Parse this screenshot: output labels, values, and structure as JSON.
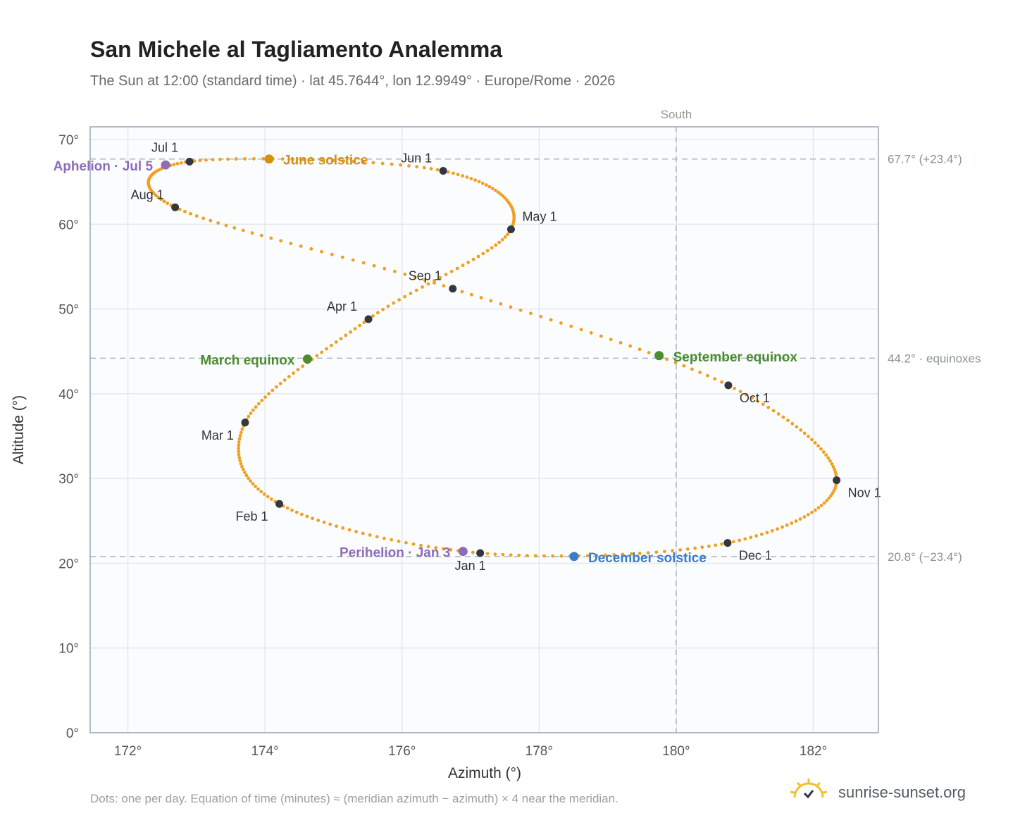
{
  "header": {
    "title": "San Michele al Tagliamento Analemma",
    "subtitle": "The Sun at 12:00 (standard time) · lat 45.7644°, lon 12.9949° · Europe/Rome · 2026"
  },
  "footer": {
    "note": "Dots: one per day. Equation of time (minutes) ≈ (meridian azimuth − azimuth) × 4 near the meridian.",
    "brand": "sunrise-sunset.org"
  },
  "colors": {
    "path": "#f0a020",
    "month_dot": "#333840",
    "solstice_june": "#d4900f",
    "solstice_december": "#3a7cc8",
    "equinox": "#4c8c30",
    "apsis": "#8e6cb8",
    "grid": "#e4e8ee",
    "frame": "#9aa6b4",
    "plot_bg": "#fafcfe"
  },
  "chart_data": {
    "type": "scatter",
    "title": "San Michele al Tagliamento Analemma",
    "xlabel": "Azimuth (°)",
    "ylabel": "Altitude (°)",
    "xlim": [
      171.45,
      182.95
    ],
    "ylim": [
      0,
      71.5
    ],
    "xticks": [
      {
        "value": 172,
        "label": "172°"
      },
      {
        "value": 174,
        "label": "174°"
      },
      {
        "value": 176,
        "label": "176°"
      },
      {
        "value": 178,
        "label": "178°"
      },
      {
        "value": 180,
        "label": "180°"
      },
      {
        "value": 182,
        "label": "182°"
      }
    ],
    "yticks": [
      {
        "value": 0,
        "label": "0°"
      },
      {
        "value": 10,
        "label": "10°"
      },
      {
        "value": 20,
        "label": "20°"
      },
      {
        "value": 30,
        "label": "30°"
      },
      {
        "value": 40,
        "label": "40°"
      },
      {
        "value": 50,
        "label": "50°"
      },
      {
        "value": 60,
        "label": "60°"
      },
      {
        "value": 70,
        "label": "70°"
      }
    ],
    "grid": true,
    "meridian": {
      "azimuth": 180,
      "label": "South"
    },
    "reference_lines": [
      {
        "altitude": 67.7,
        "label": "67.7° (+23.4°)"
      },
      {
        "altitude": 44.2,
        "label": "44.2° · equinoxes"
      },
      {
        "altitude": 20.8,
        "label": "20.8° (−23.4°)"
      }
    ],
    "months": [
      {
        "label": "Jan 1",
        "az": 177.14,
        "alt": 21.2
      },
      {
        "label": "Feb 1",
        "az": 174.21,
        "alt": 27.0
      },
      {
        "label": "Mar 1",
        "az": 173.71,
        "alt": 36.6
      },
      {
        "label": "Apr 1",
        "az": 175.51,
        "alt": 48.8
      },
      {
        "label": "May 1",
        "az": 177.59,
        "alt": 59.4
      },
      {
        "label": "Jun 1",
        "az": 176.6,
        "alt": 66.3
      },
      {
        "label": "Jul 1",
        "az": 172.9,
        "alt": 67.4
      },
      {
        "label": "Aug 1",
        "az": 172.69,
        "alt": 62.0
      },
      {
        "label": "Sep 1",
        "az": 176.74,
        "alt": 52.4
      },
      {
        "label": "Oct 1",
        "az": 180.76,
        "alt": 41.0
      },
      {
        "label": "Nov 1",
        "az": 182.34,
        "alt": 29.8
      },
      {
        "label": "Dec 1",
        "az": 180.75,
        "alt": 22.4
      }
    ],
    "events": [
      {
        "label": "June solstice",
        "az": 174.06,
        "alt": 67.7,
        "kind": "solstice_june"
      },
      {
        "label": "December solstice",
        "az": 178.51,
        "alt": 20.8,
        "kind": "solstice_december"
      },
      {
        "label": "March equinox",
        "az": 174.62,
        "alt": 44.1,
        "kind": "equinox"
      },
      {
        "label": "September equinox",
        "az": 179.75,
        "alt": 44.5,
        "kind": "equinox"
      },
      {
        "label": "Aphelion · Jul 5",
        "az": 172.55,
        "alt": 67.0,
        "kind": "apsis"
      },
      {
        "label": "Perihelion · Jan 3",
        "az": 176.89,
        "alt": 21.4,
        "kind": "apsis"
      }
    ]
  }
}
